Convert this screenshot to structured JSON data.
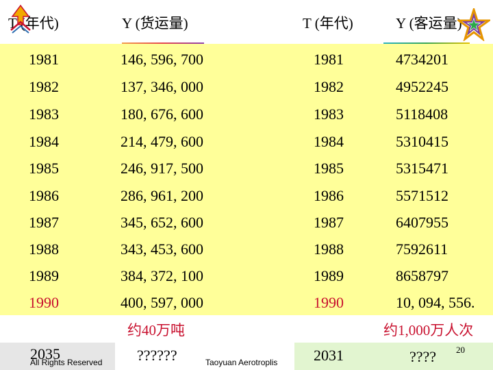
{
  "headers": {
    "left_t": "T (年代)",
    "left_y": "Y (货运量)",
    "right_t": "T (年代)",
    "right_y": "Y (客运量)"
  },
  "rows": [
    {
      "t1": "1981",
      "y1": "146, 596, 700",
      "t2": "1981",
      "y2": "4734201"
    },
    {
      "t1": "1982",
      "y1": "137, 346, 000",
      "t2": "1982",
      "y2": "4952245"
    },
    {
      "t1": "1983",
      "y1": "180, 676, 600",
      "t2": "1983",
      "y2": "5118408"
    },
    {
      "t1": "1984",
      "y1": "214, 479, 600",
      "t2": "1984",
      "y2": "5310415"
    },
    {
      "t1": "1985",
      "y1": "246, 917, 500",
      "t2": "1985",
      "y2": "5315471"
    },
    {
      "t1": "1986",
      "y1": "286, 961, 200",
      "t2": "1986",
      "y2": "5571512"
    },
    {
      "t1": "1987",
      "y1": "345, 652, 600",
      "t2": "1987",
      "y2": "6407955"
    },
    {
      "t1": "1988",
      "y1": "343, 453, 600",
      "t2": "1988",
      "y2": "7592611"
    },
    {
      "t1": "1989",
      "y1": "384, 372, 100",
      "t2": "1989",
      "y2": "8658797"
    },
    {
      "t1": "1990",
      "y1": "400, 597, 000",
      "t2": "1990",
      "y2": "10, 094, 556."
    }
  ],
  "summary": {
    "left": "约40万吨",
    "right": "约1,000万人次"
  },
  "forecast": {
    "left_year": "2035",
    "left_value": "??????",
    "right_year": "2031",
    "right_value": "????",
    "page_number": "20"
  },
  "footer": {
    "rights": "All Rights Reserved",
    "org": "Taoyuan Aerotroplis"
  },
  "colors": {
    "row_highlight": "#ffff99",
    "red_text": "#c8102e",
    "forecast_left_bg": "#e6e6e6",
    "forecast_right_bg": "#e2f5d0"
  },
  "icons": [
    "arrow-logo-icon",
    "star-logo-icon"
  ]
}
